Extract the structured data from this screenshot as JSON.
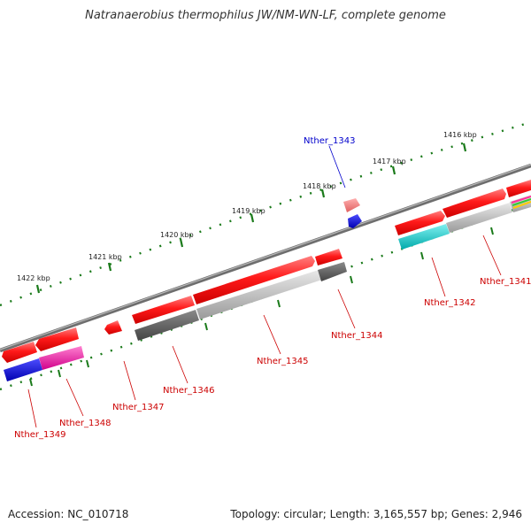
{
  "title": "Natranaerobius thermophilus JW/NM-WN-LF, complete genome",
  "footer": {
    "accession": "Accession: NC_010718",
    "topology": "Topology: circular; Length: 3,165,557 bp; Genes: 2,946"
  },
  "scale_labels": [
    "1416 kbp",
    "1417 kbp",
    "1418 kbp",
    "1419 kbp",
    "1420 kbp",
    "1421 kbp",
    "1422 kbp"
  ],
  "genes": [
    {
      "name": "Nther_1341",
      "color": "#cc0000"
    },
    {
      "name": "Nther_1342",
      "color": "#cc0000"
    },
    {
      "name": "Nther_1343",
      "color": "#0000cc"
    },
    {
      "name": "Nther_1344",
      "color": "#cc0000"
    },
    {
      "name": "Nther_1345",
      "color": "#cc0000"
    },
    {
      "name": "Nther_1346",
      "color": "#cc0000"
    },
    {
      "name": "Nther_1347",
      "color": "#cc0000"
    },
    {
      "name": "Nther_1348",
      "color": "#cc0000"
    },
    {
      "name": "Nther_1349",
      "color": "#cc0000"
    }
  ]
}
